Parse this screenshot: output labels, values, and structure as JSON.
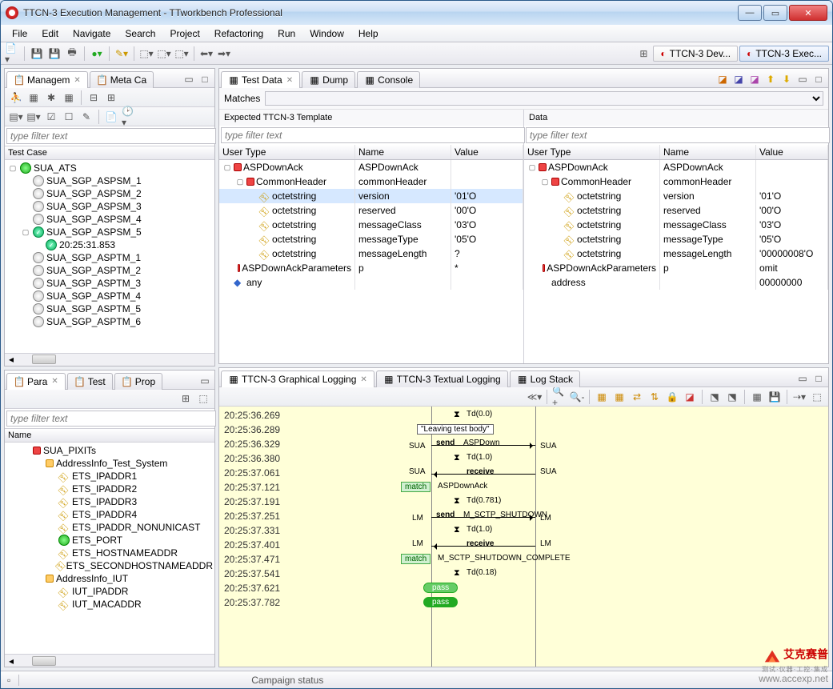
{
  "window": {
    "title": "TTCN-3 Execution Management - TTworkbench Professional"
  },
  "menu": [
    "File",
    "Edit",
    "Navigate",
    "Search",
    "Project",
    "Refactoring",
    "Run",
    "Window",
    "Help"
  ],
  "perspectives": [
    {
      "label": "TTCN-3 Dev...",
      "active": false
    },
    {
      "label": "TTCN-3 Exec...",
      "active": true
    }
  ],
  "managem": {
    "tabs": [
      {
        "label": "Managem",
        "active": true
      },
      {
        "label": "Meta Ca",
        "active": false
      }
    ],
    "filter_placeholder": "type filter text",
    "header": "Test Case",
    "tree": [
      {
        "l": 0,
        "twist": "▢",
        "ico": "green",
        "label": "SUA_ATS"
      },
      {
        "l": 1,
        "twist": "",
        "ico": "ball",
        "label": "SUA_SGP_ASPSM_1"
      },
      {
        "l": 1,
        "twist": "",
        "ico": "ball",
        "label": "SUA_SGP_ASPSM_2"
      },
      {
        "l": 1,
        "twist": "",
        "ico": "ball",
        "label": "SUA_SGP_ASPSM_3"
      },
      {
        "l": 1,
        "twist": "",
        "ico": "ball",
        "label": "SUA_SGP_ASPSM_4"
      },
      {
        "l": 1,
        "twist": "▢",
        "ico": "pass",
        "label": "SUA_SGP_ASPSM_5"
      },
      {
        "l": 2,
        "twist": "",
        "ico": "pass",
        "label": "20:25:31.853"
      },
      {
        "l": 1,
        "twist": "",
        "ico": "ball",
        "label": "SUA_SGP_ASPTM_1"
      },
      {
        "l": 1,
        "twist": "",
        "ico": "ball",
        "label": "SUA_SGP_ASPTM_2"
      },
      {
        "l": 1,
        "twist": "",
        "ico": "ball",
        "label": "SUA_SGP_ASPTM_3"
      },
      {
        "l": 1,
        "twist": "",
        "ico": "ball",
        "label": "SUA_SGP_ASPTM_4"
      },
      {
        "l": 1,
        "twist": "",
        "ico": "ball",
        "label": "SUA_SGP_ASPTM_5"
      },
      {
        "l": 1,
        "twist": "",
        "ico": "ball",
        "label": "SUA_SGP_ASPTM_6"
      }
    ]
  },
  "para": {
    "tabs": [
      {
        "label": "Para",
        "active": true
      },
      {
        "label": "Test",
        "active": false
      },
      {
        "label": "Prop",
        "active": false
      }
    ],
    "filter_placeholder": "type filter text",
    "header": "Name",
    "tree": [
      {
        "l": 1,
        "ico": "red",
        "label": "SUA_PIXITs"
      },
      {
        "l": 2,
        "ico": "yellow",
        "label": "AddressInfo_Test_System"
      },
      {
        "l": 3,
        "ico": "key",
        "label": "ETS_IPADDR1"
      },
      {
        "l": 3,
        "ico": "key",
        "label": "ETS_IPADDR2"
      },
      {
        "l": 3,
        "ico": "key",
        "label": "ETS_IPADDR3"
      },
      {
        "l": 3,
        "ico": "key",
        "label": "ETS_IPADDR4"
      },
      {
        "l": 3,
        "ico": "key",
        "label": "ETS_IPADDR_NONUNICAST"
      },
      {
        "l": 3,
        "ico": "green",
        "label": "ETS_PORT"
      },
      {
        "l": 3,
        "ico": "key",
        "label": "ETS_HOSTNAMEADDR"
      },
      {
        "l": 3,
        "ico": "key",
        "label": "ETS_SECONDHOSTNAMEADDR"
      },
      {
        "l": 2,
        "ico": "yellow",
        "label": "AddressInfo_IUT"
      },
      {
        "l": 3,
        "ico": "key",
        "label": "IUT_IPADDR"
      },
      {
        "l": 3,
        "ico": "key",
        "label": "IUT_MACADDR"
      }
    ]
  },
  "testdata": {
    "tabs": [
      {
        "label": "Test Data",
        "active": true
      },
      {
        "label": "Dump",
        "active": false
      },
      {
        "label": "Console",
        "active": false
      }
    ],
    "matches_label": "Matches",
    "left_title": "Expected TTCN-3 Template",
    "right_title": "Data",
    "filter_placeholder": "type filter text",
    "cols": [
      "User Type",
      "Name",
      "Value"
    ],
    "left_rows": [
      {
        "l": 0,
        "twist": "▢",
        "ico": "red",
        "type": "ASPDownAck",
        "name": "ASPDownAck",
        "value": "",
        "sel": false
      },
      {
        "l": 1,
        "twist": "▢",
        "ico": "red",
        "type": "CommonHeader",
        "name": "commonHeader",
        "value": "",
        "sel": false
      },
      {
        "l": 2,
        "twist": "",
        "ico": "key",
        "type": "octetstring",
        "name": "version",
        "value": "'01'O",
        "sel": true
      },
      {
        "l": 2,
        "twist": "",
        "ico": "key",
        "type": "octetstring",
        "name": "reserved",
        "value": "'00'O",
        "sel": false
      },
      {
        "l": 2,
        "twist": "",
        "ico": "key",
        "type": "octetstring",
        "name": "messageClass",
        "value": "'03'O",
        "sel": false
      },
      {
        "l": 2,
        "twist": "",
        "ico": "key",
        "type": "octetstring",
        "name": "messageType",
        "value": "'05'O",
        "sel": false
      },
      {
        "l": 2,
        "twist": "",
        "ico": "key",
        "type": "octetstring",
        "name": "messageLength",
        "value": "?",
        "sel": false
      },
      {
        "l": 1,
        "twist": "",
        "ico": "red",
        "type": "ASPDownAckParameters",
        "name": "p",
        "value": "*",
        "sel": false
      },
      {
        "l": 0,
        "twist": "",
        "ico": "dot",
        "type": "any",
        "name": "",
        "value": "",
        "sel": false
      }
    ],
    "right_rows": [
      {
        "l": 0,
        "twist": "▢",
        "ico": "red",
        "type": "ASPDownAck",
        "name": "ASPDownAck",
        "value": ""
      },
      {
        "l": 1,
        "twist": "▢",
        "ico": "red",
        "type": "CommonHeader",
        "name": "commonHeader",
        "value": ""
      },
      {
        "l": 2,
        "twist": "",
        "ico": "key",
        "type": "octetstring",
        "name": "version",
        "value": "'01'O"
      },
      {
        "l": 2,
        "twist": "",
        "ico": "key",
        "type": "octetstring",
        "name": "reserved",
        "value": "'00'O"
      },
      {
        "l": 2,
        "twist": "",
        "ico": "key",
        "type": "octetstring",
        "name": "messageClass",
        "value": "'03'O"
      },
      {
        "l": 2,
        "twist": "",
        "ico": "key",
        "type": "octetstring",
        "name": "messageType",
        "value": "'05'O"
      },
      {
        "l": 2,
        "twist": "",
        "ico": "key",
        "type": "octetstring",
        "name": "messageLength",
        "value": "'00000008'O"
      },
      {
        "l": 1,
        "twist": "",
        "ico": "red",
        "type": "ASPDownAckParameters",
        "name": "p",
        "value": "omit"
      },
      {
        "l": 0,
        "twist": "",
        "ico": "",
        "type": "address",
        "name": "",
        "value": "00000000"
      }
    ]
  },
  "logging": {
    "tabs": [
      {
        "label": "TTCN-3 Graphical Logging",
        "active": true
      },
      {
        "label": "TTCN-3 Textual Logging",
        "active": false
      },
      {
        "label": "Log Stack",
        "active": false
      }
    ],
    "timestamps": [
      "20:25:36.269",
      "20:25:36.289",
      "20:25:36.329",
      "20:25:36.380",
      "20:25:37.061",
      "20:25:37.121",
      "20:25:37.191",
      "20:25:37.251",
      "20:25:37.331",
      "20:25:37.401",
      "20:25:37.471",
      "20:25:37.541",
      "20:25:37.621",
      "20:25:37.782"
    ],
    "lane_labels": {
      "left": "SUA",
      "right": "SUA",
      "lm_left": "LM",
      "lm_right": "LM"
    },
    "events": {
      "td00": "Td(0.0)",
      "leaving": "\"Leaving test body\"",
      "send_aspdown_l": "send",
      "send_aspdown_r": "ASPDown",
      "td10": "Td(1.0)",
      "receive": "receive",
      "match": "match",
      "aspdownack": "ASPDownAck",
      "td0781": "Td(0.781)",
      "send_sctp_l": "send",
      "send_sctp_r": "M_SCTP_SHUTDOWN",
      "td10b": "Td(1.0)",
      "receive2": "receive",
      "match2": "match",
      "sctp_complete": "M_SCTP_SHUTDOWN_COMPLETE",
      "td018": "Td(0.18)",
      "pass": "pass",
      "pass2": "pass"
    },
    "colors": {
      "bg": "#ffffd8",
      "match_bg": "#d0f0d0",
      "pass_bg": "#66cc66"
    }
  },
  "status": {
    "label": "Campaign status"
  },
  "watermark": {
    "brand": "艾克赛普",
    "sub": "测试·仪器·工控·集成",
    "url": "www.accexp.net"
  }
}
